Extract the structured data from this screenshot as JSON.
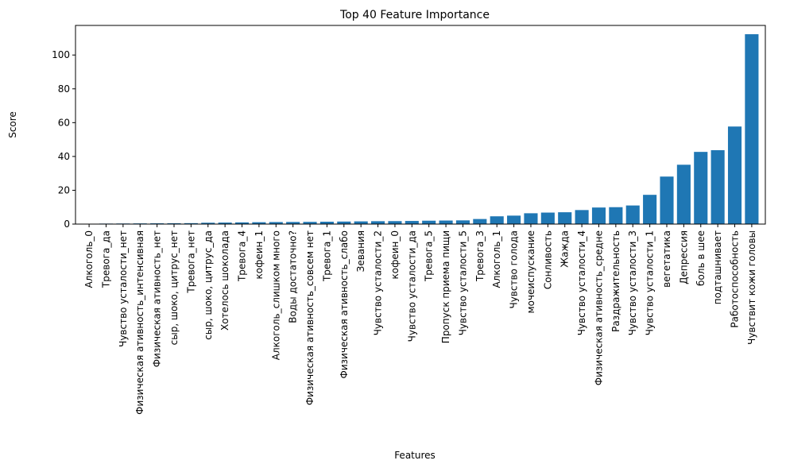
{
  "chart_data": {
    "type": "bar",
    "title": "Top 40 Feature Importance",
    "xlabel": "Features",
    "ylabel": "Score",
    "ylim": [
      0,
      117.5
    ],
    "yticks": [
      0,
      20,
      40,
      60,
      80,
      100
    ],
    "grid": false,
    "legend": "none",
    "bar_color": "#1f77b4",
    "categories": [
      "Алкоголь_0",
      "Тревога_да",
      "Чувство усталости_нет",
      "Физическая ативность_интенсивная",
      "Физическая ативность_нет",
      "сыр, шоко, цитрус_нет",
      "Тревога_нет",
      "сыр, шоко, цитрус_да",
      "Хотелось шоколада",
      "Тревога_4",
      "кофеин_1",
      "Алкоголь_слишком много",
      "Воды достаточно?",
      "Физическая ативность_совсем нет",
      "Тревога_1",
      "Физическая ативность_слабо",
      "Зевания",
      "Чувство усталости_2",
      "кофеин_0",
      "Чувство усталости_да",
      "Тревога_5",
      "Пропуск приема пищи",
      "Чувство усталости_5",
      "Тревога_3",
      "Алкоголь_1",
      "Чувство голода",
      "мочеиспускание",
      "Сонливость",
      "Жажда",
      "Чувство усталости_4",
      "Физическая ативность_средне",
      "Раздражительность",
      "Чувство усталости_3",
      "Чувство усталости_1",
      "вегетатика",
      "Депрессия",
      "боль в шее",
      "подташнивает",
      "Работоспособность",
      "Чувствит кожи головы"
    ],
    "values": [
      0.2,
      0.3,
      0.35,
      0.4,
      0.45,
      0.5,
      0.55,
      0.8,
      0.9,
      1.0,
      1.1,
      1.2,
      1.25,
      1.3,
      1.4,
      1.5,
      1.6,
      1.7,
      1.75,
      1.85,
      2.0,
      2.1,
      2.2,
      3.0,
      4.6,
      5.0,
      6.4,
      6.8,
      7.0,
      8.3,
      9.8,
      10.0,
      11.0,
      17.3,
      28.1,
      35.1,
      42.7,
      43.7,
      57.7,
      112.3
    ]
  }
}
